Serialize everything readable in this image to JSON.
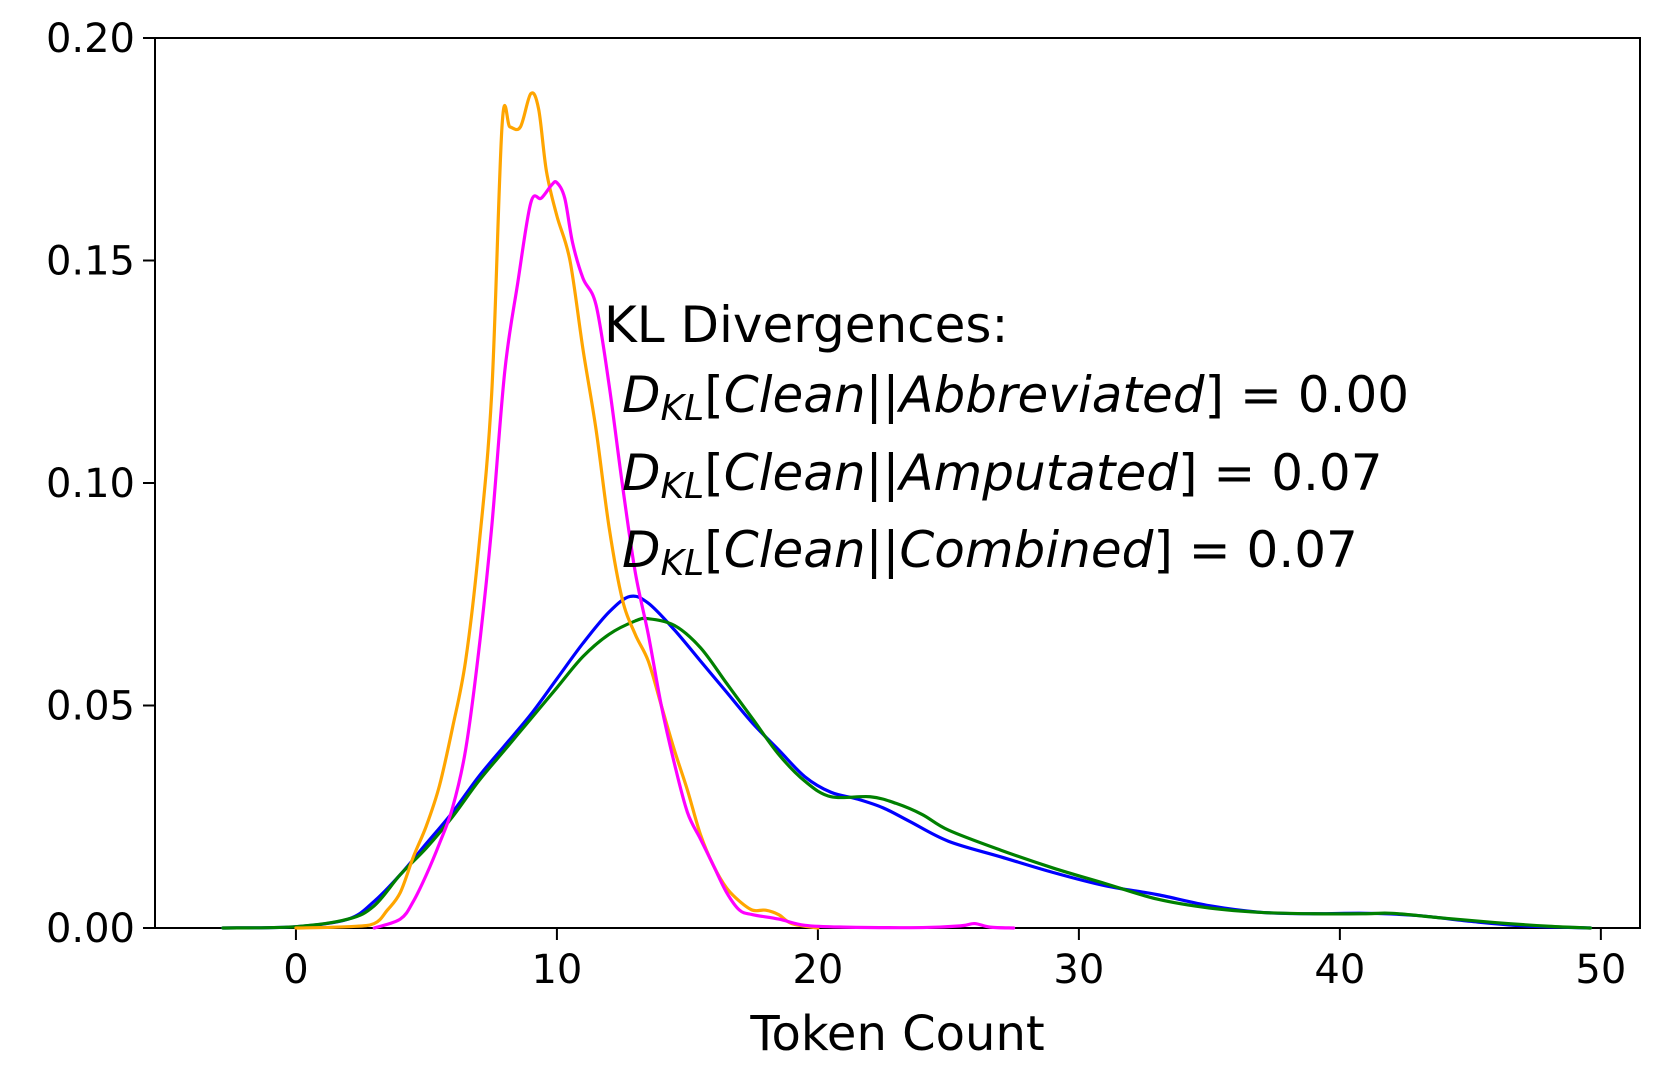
{
  "chart_data": {
    "type": "line",
    "title": "",
    "xlabel": "Token Count",
    "ylabel": "",
    "xlim": [
      -5.4,
      51.5
    ],
    "ylim": [
      0,
      0.2
    ],
    "x_ticks": [
      0,
      10,
      20,
      30,
      40,
      50
    ],
    "y_ticks": [
      0.0,
      0.05,
      0.1,
      0.15,
      0.2
    ],
    "x_tick_labels": [
      "0",
      "10",
      "20",
      "30",
      "40",
      "50"
    ],
    "y_tick_labels": [
      "0.00",
      "0.05",
      "0.10",
      "0.15",
      "0.20"
    ],
    "grid": false,
    "legend": "none",
    "annotation": {
      "heading": "KL Divergences:",
      "lines": [
        {
          "d": "D",
          "sub": "KL",
          "open": "[",
          "a": "Clean",
          "sep": "||",
          "b": "Abbreviated",
          "close": "] = 0.00"
        },
        {
          "d": "D",
          "sub": "KL",
          "open": "[",
          "a": "Clean",
          "sep": "||",
          "b": "Amputated",
          "close": "] = 0.07"
        },
        {
          "d": "D",
          "sub": "KL",
          "open": "[",
          "a": "Clean",
          "sep": "||",
          "b": "Combined",
          "close": "] = 0.07"
        }
      ]
    },
    "series": [
      {
        "color": "#0000ff",
        "points": [
          [
            -2.8,
            0.0
          ],
          [
            0,
            0.0003
          ],
          [
            2,
            0.002
          ],
          [
            3,
            0.006
          ],
          [
            4,
            0.012
          ],
          [
            5,
            0.019
          ],
          [
            6,
            0.026
          ],
          [
            7,
            0.034
          ],
          [
            8,
            0.041
          ],
          [
            9,
            0.048
          ],
          [
            10,
            0.056
          ],
          [
            11,
            0.064
          ],
          [
            12,
            0.071
          ],
          [
            12.8,
            0.0745
          ],
          [
            13.5,
            0.073
          ],
          [
            14.5,
            0.067
          ],
          [
            15.5,
            0.06
          ],
          [
            16.5,
            0.053
          ],
          [
            17.5,
            0.046
          ],
          [
            18.5,
            0.04
          ],
          [
            19.5,
            0.034
          ],
          [
            20.5,
            0.0305
          ],
          [
            21.5,
            0.029
          ],
          [
            22.5,
            0.027
          ],
          [
            23.5,
            0.024
          ],
          [
            25,
            0.0195
          ],
          [
            27,
            0.016
          ],
          [
            29,
            0.0125
          ],
          [
            31,
            0.0095
          ],
          [
            33,
            0.0075
          ],
          [
            35,
            0.005
          ],
          [
            37,
            0.0035
          ],
          [
            39,
            0.0032
          ],
          [
            41,
            0.0033
          ],
          [
            43,
            0.0028
          ],
          [
            45,
            0.0015
          ],
          [
            47,
            0.0005
          ],
          [
            49.6,
            0.0
          ]
        ]
      },
      {
        "color": "#008000",
        "points": [
          [
            -2.8,
            0.0
          ],
          [
            0,
            0.0003
          ],
          [
            2,
            0.002
          ],
          [
            3,
            0.005
          ],
          [
            4,
            0.012
          ],
          [
            5,
            0.018
          ],
          [
            6,
            0.025
          ],
          [
            7,
            0.033
          ],
          [
            8,
            0.04
          ],
          [
            9,
            0.047
          ],
          [
            10,
            0.054
          ],
          [
            11,
            0.061
          ],
          [
            12,
            0.066
          ],
          [
            13,
            0.069
          ],
          [
            13.5,
            0.0695
          ],
          [
            14.5,
            0.068
          ],
          [
            15.5,
            0.063
          ],
          [
            16.5,
            0.055
          ],
          [
            17.5,
            0.047
          ],
          [
            18.5,
            0.039
          ],
          [
            19.5,
            0.033
          ],
          [
            20.5,
            0.0295
          ],
          [
            22,
            0.0295
          ],
          [
            23,
            0.028
          ],
          [
            24,
            0.0255
          ],
          [
            25,
            0.022
          ],
          [
            27,
            0.0175
          ],
          [
            29,
            0.0135
          ],
          [
            31,
            0.01
          ],
          [
            33,
            0.0065
          ],
          [
            35,
            0.0045
          ],
          [
            37,
            0.0035
          ],
          [
            39,
            0.0032
          ],
          [
            41,
            0.0032
          ],
          [
            42,
            0.0033
          ],
          [
            44,
            0.0022
          ],
          [
            46,
            0.0012
          ],
          [
            48,
            0.0004
          ],
          [
            49.6,
            0.0
          ]
        ]
      },
      {
        "color": "#ffa500",
        "points": [
          [
            0,
            0.0
          ],
          [
            2,
            0.0003
          ],
          [
            3,
            0.001
          ],
          [
            3.5,
            0.004
          ],
          [
            4,
            0.008
          ],
          [
            4.5,
            0.016
          ],
          [
            5,
            0.023
          ],
          [
            5.5,
            0.032
          ],
          [
            6,
            0.045
          ],
          [
            6.5,
            0.06
          ],
          [
            7,
            0.085
          ],
          [
            7.5,
            0.12
          ],
          [
            7.9,
            0.1805
          ],
          [
            8.2,
            0.18
          ],
          [
            8.6,
            0.18
          ],
          [
            9,
            0.1875
          ],
          [
            9.3,
            0.184
          ],
          [
            9.6,
            0.17
          ],
          [
            10,
            0.16
          ],
          [
            10.5,
            0.15
          ],
          [
            11,
            0.13
          ],
          [
            11.5,
            0.112
          ],
          [
            12,
            0.09
          ],
          [
            12.5,
            0.074
          ],
          [
            13,
            0.066
          ],
          [
            13.5,
            0.06
          ],
          [
            14,
            0.05
          ],
          [
            14.5,
            0.04
          ],
          [
            15,
            0.031
          ],
          [
            15.5,
            0.021
          ],
          [
            16,
            0.014
          ],
          [
            16.5,
            0.009
          ],
          [
            17,
            0.006
          ],
          [
            17.5,
            0.004
          ],
          [
            18,
            0.004
          ],
          [
            18.5,
            0.003
          ],
          [
            19,
            0.001
          ],
          [
            20,
            0.0
          ]
        ]
      },
      {
        "color": "#ff00ff",
        "points": [
          [
            3,
            0.0
          ],
          [
            4,
            0.002
          ],
          [
            4.5,
            0.006
          ],
          [
            5,
            0.012
          ],
          [
            5.5,
            0.019
          ],
          [
            6,
            0.027
          ],
          [
            6.5,
            0.04
          ],
          [
            7,
            0.062
          ],
          [
            7.5,
            0.09
          ],
          [
            8,
            0.125
          ],
          [
            8.5,
            0.145
          ],
          [
            9,
            0.163
          ],
          [
            9.4,
            0.164
          ],
          [
            9.8,
            0.167
          ],
          [
            10,
            0.1675
          ],
          [
            10.3,
            0.164
          ],
          [
            10.6,
            0.154
          ],
          [
            11,
            0.146
          ],
          [
            11.5,
            0.14
          ],
          [
            12,
            0.122
          ],
          [
            12.5,
            0.1
          ],
          [
            13,
            0.08
          ],
          [
            13.5,
            0.066
          ],
          [
            14,
            0.05
          ],
          [
            14.5,
            0.037
          ],
          [
            15,
            0.026
          ],
          [
            15.5,
            0.02
          ],
          [
            16,
            0.014
          ],
          [
            16.5,
            0.008
          ],
          [
            17,
            0.004
          ],
          [
            17.5,
            0.003
          ],
          [
            18.5,
            0.002
          ],
          [
            19.5,
            0.0006
          ],
          [
            21,
            0.0002
          ],
          [
            24,
            0.0001
          ],
          [
            25.5,
            0.0005
          ],
          [
            26,
            0.001
          ],
          [
            26.6,
            0.0002
          ],
          [
            27.5,
            0.0
          ]
        ]
      }
    ]
  }
}
